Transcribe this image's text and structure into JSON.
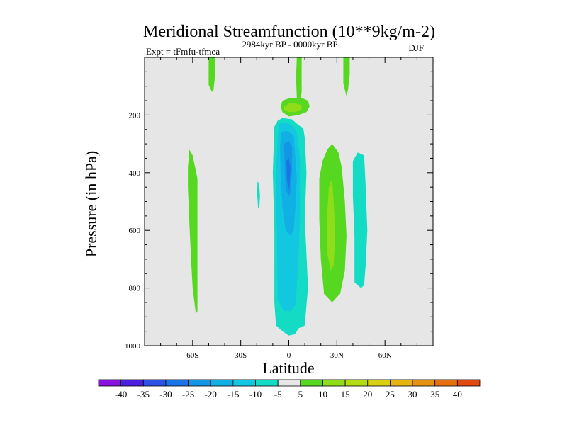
{
  "chart_data": {
    "type": "contour",
    "title": "Meridional Streamfunction (10**9kg/m-2)",
    "left_subtitle": "Expt = tFmfu-tfmea",
    "center_subtitle": "2984kyr BP - 0000kyr BP",
    "right_subtitle": "DJF",
    "xlabel": "Latitude",
    "ylabel": "Pressure (in hPa)",
    "xlim": [
      -90,
      90
    ],
    "ylim": [
      1000,
      0
    ],
    "xticks": [
      {
        "value": -60,
        "label": "60S"
      },
      {
        "value": -30,
        "label": "30S"
      },
      {
        "value": 0,
        "label": "0"
      },
      {
        "value": 30,
        "label": "30N"
      },
      {
        "value": 60,
        "label": "60N"
      }
    ],
    "yticks": [
      200,
      400,
      600,
      800,
      1000
    ],
    "background_color": "#e6e6e6",
    "colorbar": {
      "levels": [
        -40,
        -35,
        -30,
        -25,
        -20,
        -15,
        -10,
        -5,
        5,
        10,
        15,
        20,
        25,
        30,
        35,
        40
      ],
      "colors": [
        "#8a10e0",
        "#4b1fe0",
        "#2a52e6",
        "#1a74e8",
        "#1396e6",
        "#10b0e4",
        "#12c8e0",
        "#14dcc4",
        "#e6e6e6",
        "#56d820",
        "#8fdc18",
        "#b4dc14",
        "#d8d010",
        "#e6b410",
        "#e69210",
        "#e67010",
        "#e04a10"
      ]
    },
    "regions": [
      {
        "name": "sh-upper-positive",
        "value": 7.5,
        "points": [
          [
            -50,
            0
          ],
          [
            -46,
            0
          ],
          [
            -46,
            60
          ],
          [
            -47,
            115
          ],
          [
            -48,
            120
          ],
          [
            -50,
            95
          ]
        ]
      },
      {
        "name": "sh-midlat-positive",
        "value": 7.5,
        "points": [
          [
            -62,
            320
          ],
          [
            -60,
            340
          ],
          [
            -57,
            420
          ],
          [
            -57,
            600
          ],
          [
            -57,
            820
          ],
          [
            -57,
            880
          ],
          [
            -58,
            890
          ],
          [
            -60,
            800
          ],
          [
            -61,
            700
          ],
          [
            -62,
            580
          ],
          [
            -63,
            450
          ],
          [
            -63,
            380
          ]
        ]
      },
      {
        "name": "sh-small-negative",
        "value": -7.5,
        "points": [
          [
            -19.5,
            430
          ],
          [
            -18.5,
            440
          ],
          [
            -18,
            480
          ],
          [
            -18.5,
            530
          ],
          [
            -19.2,
            520
          ],
          [
            -19.8,
            470
          ]
        ]
      },
      {
        "name": "eq-upper-stem",
        "value": 7.5,
        "points": [
          [
            5,
            0
          ],
          [
            8,
            0
          ],
          [
            8,
            120
          ],
          [
            7,
            150
          ],
          [
            5,
            140
          ],
          [
            4.5,
            70
          ]
        ]
      },
      {
        "name": "eq-200hpa-positive",
        "value": 7.5,
        "points": [
          [
            -5,
            170
          ],
          [
            -4,
            150
          ],
          [
            1,
            140
          ],
          [
            8,
            140
          ],
          [
            12,
            150
          ],
          [
            13,
            170
          ],
          [
            11,
            190
          ],
          [
            6,
            200
          ],
          [
            0,
            205
          ],
          [
            -4,
            190
          ]
        ]
      },
      {
        "name": "eq-200hpa-core",
        "value": 12.5,
        "points": [
          [
            -3,
            172
          ],
          [
            0,
            160
          ],
          [
            4,
            160
          ],
          [
            8,
            165
          ],
          [
            8,
            180
          ],
          [
            4,
            190
          ],
          [
            0,
            190
          ],
          [
            -3,
            182
          ]
        ]
      },
      {
        "name": "tropical-negative-outer",
        "value": -7.5,
        "points": [
          [
            -7,
            220
          ],
          [
            -4,
            210
          ],
          [
            2,
            215
          ],
          [
            6,
            235
          ],
          [
            9,
            245
          ],
          [
            10,
            280
          ],
          [
            11,
            400
          ],
          [
            10,
            560
          ],
          [
            12,
            800
          ],
          [
            11,
            860
          ],
          [
            10,
            930
          ],
          [
            6,
            940
          ],
          [
            4,
            960
          ],
          [
            0,
            965
          ],
          [
            -4,
            950
          ],
          [
            -8,
            930
          ],
          [
            -9,
            850
          ],
          [
            -9,
            600
          ],
          [
            -10,
            400
          ],
          [
            -9,
            240
          ]
        ]
      },
      {
        "name": "tropical-negative-10",
        "value": -12.5,
        "points": [
          [
            -6,
            230
          ],
          [
            -2,
            225
          ],
          [
            3,
            240
          ],
          [
            5,
            260
          ],
          [
            7,
            350
          ],
          [
            7,
            470
          ],
          [
            7,
            560
          ],
          [
            6,
            700
          ],
          [
            5,
            800
          ],
          [
            4,
            860
          ],
          [
            1,
            880
          ],
          [
            -3,
            880
          ],
          [
            -7,
            840
          ],
          [
            -7.5,
            600
          ],
          [
            -8,
            400
          ],
          [
            -7,
            280
          ]
        ]
      },
      {
        "name": "tropical-negative-15",
        "value": -17.5,
        "points": [
          [
            -5,
            260
          ],
          [
            -1,
            255
          ],
          [
            3,
            270
          ],
          [
            4,
            340
          ],
          [
            5,
            420
          ],
          [
            4,
            530
          ],
          [
            3,
            600
          ],
          [
            1,
            620
          ],
          [
            -2,
            600
          ],
          [
            -4,
            520
          ],
          [
            -5,
            420
          ],
          [
            -5.5,
            320
          ]
        ]
      },
      {
        "name": "tropical-negative-20",
        "value": -22.5,
        "points": [
          [
            -3,
            300
          ],
          [
            0,
            290
          ],
          [
            2,
            310
          ],
          [
            2,
            400
          ],
          [
            1,
            470
          ],
          [
            0,
            480
          ],
          [
            -2,
            460
          ],
          [
            -2.5,
            380
          ]
        ]
      },
      {
        "name": "tropical-negative-25",
        "value": -27.5,
        "points": [
          [
            -1.5,
            360
          ],
          [
            0,
            350
          ],
          [
            1,
            380
          ],
          [
            0.5,
            440
          ],
          [
            0,
            460
          ],
          [
            -1,
            430
          ]
        ]
      },
      {
        "name": "nh-upper-positive",
        "value": 7.5,
        "points": [
          [
            34,
            0
          ],
          [
            38,
            0
          ],
          [
            38,
            60
          ],
          [
            37,
            110
          ],
          [
            36,
            135
          ],
          [
            34,
            90
          ]
        ]
      },
      {
        "name": "nh-subtropical-positive",
        "value": 7.5,
        "points": [
          [
            19,
            420
          ],
          [
            21,
            360
          ],
          [
            24,
            320
          ],
          [
            27,
            300
          ],
          [
            31,
            330
          ],
          [
            33,
            380
          ],
          [
            35,
            500
          ],
          [
            36,
            620
          ],
          [
            35,
            740
          ],
          [
            32,
            820
          ],
          [
            27,
            850
          ],
          [
            22,
            820
          ],
          [
            20,
            700
          ],
          [
            19,
            560
          ]
        ]
      },
      {
        "name": "nh-subtropical-10",
        "value": 12.5,
        "points": [
          [
            24,
            540
          ],
          [
            25,
            450
          ],
          [
            27,
            420
          ],
          [
            28,
            500
          ],
          [
            29,
            620
          ],
          [
            28,
            720
          ],
          [
            26,
            740
          ],
          [
            24,
            680
          ]
        ]
      },
      {
        "name": "nh-midlat-negative",
        "value": -7.5,
        "points": [
          [
            40,
            360
          ],
          [
            43,
            330
          ],
          [
            47,
            340
          ],
          [
            48,
            450
          ],
          [
            49,
            600
          ],
          [
            48,
            720
          ],
          [
            47,
            790
          ],
          [
            45,
            800
          ],
          [
            41,
            780
          ],
          [
            41,
            620
          ],
          [
            40,
            480
          ]
        ]
      }
    ]
  }
}
